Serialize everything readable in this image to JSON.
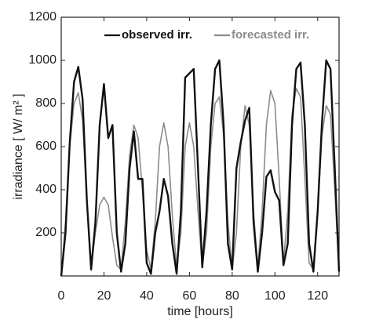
{
  "chart_data": {
    "type": "line",
    "xlabel": "time [hours]",
    "ylabel": "irradiance [ W/ m² ]",
    "x": [
      0,
      2,
      4,
      6,
      8,
      10,
      12,
      14,
      16,
      18,
      20,
      22,
      24,
      26,
      28,
      30,
      32,
      34,
      36,
      38,
      40,
      42,
      44,
      46,
      48,
      50,
      52,
      54,
      56,
      58,
      60,
      62,
      64,
      66,
      68,
      70,
      72,
      74,
      76,
      78,
      80,
      82,
      84,
      86,
      88,
      90,
      92,
      94,
      96,
      98,
      100,
      102,
      104,
      106,
      108,
      110,
      112,
      114,
      116,
      118,
      120,
      122,
      124,
      126,
      128,
      130
    ],
    "series": [
      {
        "name": "observed irr.",
        "color": "#111111",
        "values": [
          0,
          200,
          620,
          900,
          970,
          820,
          350,
          30,
          250,
          700,
          890,
          640,
          700,
          200,
          20,
          150,
          500,
          670,
          450,
          450,
          60,
          10,
          200,
          300,
          450,
          370,
          150,
          10,
          300,
          920,
          940,
          960,
          500,
          40,
          300,
          700,
          960,
          1000,
          700,
          150,
          30,
          500,
          620,
          720,
          780,
          250,
          20,
          200,
          460,
          490,
          390,
          350,
          50,
          150,
          700,
          960,
          990,
          700,
          150,
          20,
          300,
          710,
          1000,
          960,
          500,
          20
        ]
      },
      {
        "name": "forecasted irr.",
        "color": "#8c8c8c",
        "values": [
          0,
          250,
          600,
          800,
          850,
          720,
          350,
          40,
          200,
          330,
          365,
          330,
          180,
          50,
          30,
          250,
          560,
          700,
          640,
          400,
          120,
          30,
          250,
          600,
          710,
          600,
          280,
          40,
          200,
          600,
          710,
          600,
          300,
          40,
          200,
          600,
          800,
          830,
          650,
          250,
          30,
          200,
          600,
          790,
          700,
          300,
          40,
          300,
          700,
          860,
          800,
          450,
          60,
          300,
          750,
          870,
          830,
          450,
          60,
          30,
          300,
          650,
          790,
          750,
          400,
          20
        ]
      }
    ],
    "xlim": [
      0,
      130
    ],
    "ylim": [
      0,
      1200
    ],
    "xticks": [
      0,
      20,
      40,
      60,
      80,
      100,
      120
    ],
    "yticks": [
      200,
      400,
      600,
      800,
      1000,
      1200
    ],
    "grid": false,
    "legend": "top"
  }
}
